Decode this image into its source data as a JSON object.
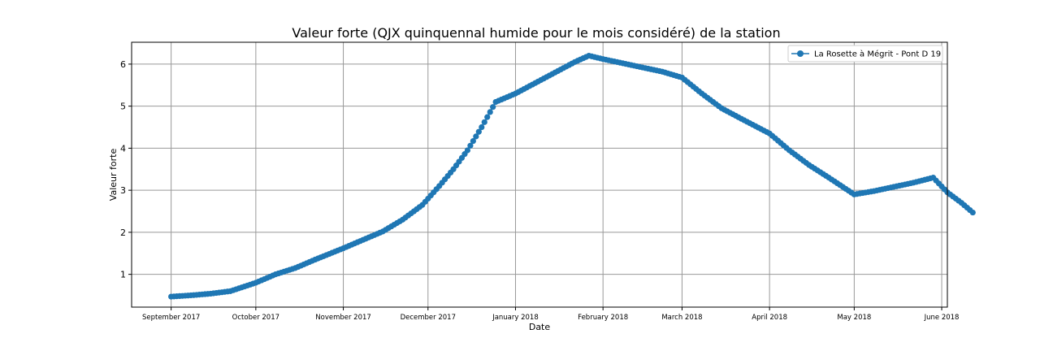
{
  "chart_data": {
    "type": "line",
    "title": "Valeur forte (QJX quinquennal humide pour le mois considéré) de la station",
    "xlabel": "Date",
    "ylabel": "Valeur forte",
    "x_ticks": [
      {
        "label": "September 2017",
        "date": "2017-09-01"
      },
      {
        "label": "October 2017",
        "date": "2017-10-01"
      },
      {
        "label": "November 2017",
        "date": "2017-11-01"
      },
      {
        "label": "December 2017",
        "date": "2017-12-01"
      },
      {
        "label": "January 2018",
        "date": "2018-01-01"
      },
      {
        "label": "February 2018",
        "date": "2018-02-01"
      },
      {
        "label": "March 2018",
        "date": "2018-03-01"
      },
      {
        "label": "April 2018",
        "date": "2018-04-01"
      },
      {
        "label": "May 2018",
        "date": "2018-05-01"
      },
      {
        "label": "June 2018",
        "date": "2018-06-01"
      }
    ],
    "y_ticks": [
      1,
      2,
      3,
      4,
      5,
      6
    ],
    "xlim": [
      "2017-08-18",
      "2018-06-03"
    ],
    "ylim": [
      0.22,
      6.52
    ],
    "grid": true,
    "legend_position": "top-right",
    "color": "#1f77b4",
    "marker": "circle",
    "series": [
      {
        "name": "La Rosette à Mégrit - Pont D 19",
        "points": [
          [
            "2017-09-01",
            0.47
          ],
          [
            "2017-09-08",
            0.5
          ],
          [
            "2017-09-15",
            0.54
          ],
          [
            "2017-09-22",
            0.6
          ],
          [
            "2017-10-01",
            0.8
          ],
          [
            "2017-10-08",
            1.0
          ],
          [
            "2017-10-15",
            1.15
          ],
          [
            "2017-10-22",
            1.35
          ],
          [
            "2017-11-01",
            1.62
          ],
          [
            "2017-11-08",
            1.82
          ],
          [
            "2017-11-15",
            2.02
          ],
          [
            "2017-11-22",
            2.3
          ],
          [
            "2017-11-29",
            2.65
          ],
          [
            "2017-12-05",
            3.1
          ],
          [
            "2017-12-10",
            3.5
          ],
          [
            "2017-12-15",
            3.95
          ],
          [
            "2017-12-20",
            4.5
          ],
          [
            "2017-12-25",
            5.1
          ],
          [
            "2018-01-01",
            5.3
          ],
          [
            "2018-01-08",
            5.55
          ],
          [
            "2018-01-15",
            5.8
          ],
          [
            "2018-01-22",
            6.05
          ],
          [
            "2018-01-27",
            6.2
          ],
          [
            "2018-02-01",
            6.12
          ],
          [
            "2018-02-08",
            6.02
          ],
          [
            "2018-02-15",
            5.92
          ],
          [
            "2018-02-22",
            5.82
          ],
          [
            "2018-03-01",
            5.68
          ],
          [
            "2018-03-08",
            5.3
          ],
          [
            "2018-03-15",
            4.95
          ],
          [
            "2018-03-22",
            4.7
          ],
          [
            "2018-04-01",
            4.35
          ],
          [
            "2018-04-08",
            3.95
          ],
          [
            "2018-04-15",
            3.6
          ],
          [
            "2018-04-22",
            3.3
          ],
          [
            "2018-05-01",
            2.9
          ],
          [
            "2018-05-08",
            2.98
          ],
          [
            "2018-05-15",
            3.08
          ],
          [
            "2018-05-22",
            3.18
          ],
          [
            "2018-05-29",
            3.3
          ],
          [
            "2018-06-03",
            2.95
          ],
          [
            "2018-06-08",
            2.7
          ],
          [
            "2018-06-12",
            2.47
          ]
        ]
      }
    ]
  }
}
